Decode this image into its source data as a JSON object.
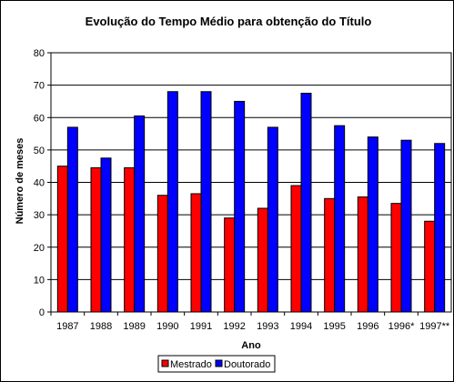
{
  "chart_data": {
    "type": "bar",
    "title": "Evolução do Tempo Médio para obtenção do Título",
    "xlabel": "Ano",
    "ylabel": "Número de meses",
    "ylim": [
      0,
      80
    ],
    "yticks": [
      0,
      10,
      20,
      30,
      40,
      50,
      60,
      70,
      80
    ],
    "grid": true,
    "legend_position": "bottom",
    "categories": [
      "1987",
      "1988",
      "1989",
      "1990",
      "1991",
      "1992",
      "1993",
      "1994",
      "1995",
      "1996",
      "1996*",
      "1997**"
    ],
    "series": [
      {
        "name": "Mestrado",
        "color": "#ff0000",
        "values": [
          45,
          44.5,
          44.5,
          36,
          36.5,
          29,
          32,
          39,
          35,
          35.5,
          33.5,
          28
        ]
      },
      {
        "name": "Doutorado",
        "color": "#0000ff",
        "values": [
          57,
          47.5,
          60.5,
          68,
          68,
          65,
          57,
          67.5,
          57.5,
          54,
          53,
          52
        ]
      }
    ]
  }
}
